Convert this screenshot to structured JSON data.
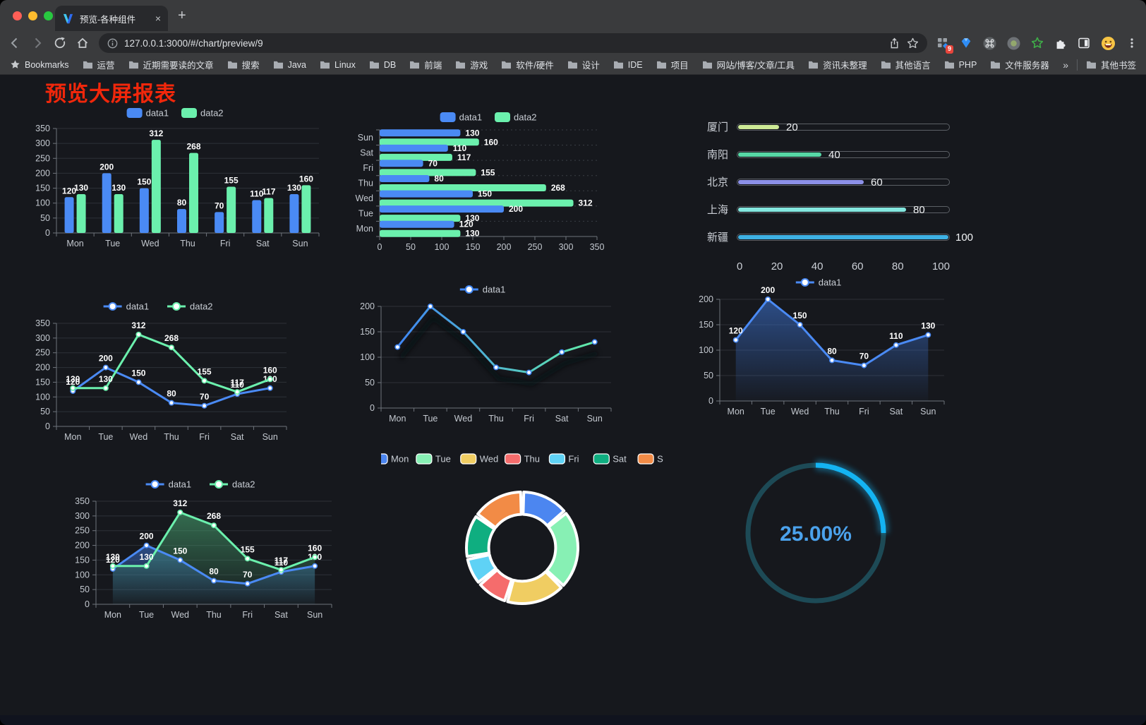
{
  "browser": {
    "tab": {
      "title": "预览-各种组件",
      "close_label": "×",
      "new_tab_label": "+"
    },
    "url": "127.0.0.1:3000/#/chart/preview/9",
    "extension_badge": "9",
    "bookmarks_label": "Bookmarks",
    "bookmarks": [
      "运营",
      "近期需要读的文章",
      "搜索",
      "Java",
      "Linux",
      "DB",
      "前端",
      "游戏",
      "软件/硬件",
      "设计",
      "IDE",
      "项目",
      "网站/博客/文章/工具",
      "资讯未整理",
      "其他语言",
      "PHP",
      "文件服务器"
    ],
    "bookmarks_overflow": "»",
    "other_bookmarks": "其他书签",
    "icons": [
      "back-icon",
      "forward-icon",
      "reload-icon",
      "home-icon",
      "info-icon",
      "share-icon",
      "star-icon",
      "extension-grid-icon",
      "gem-icon",
      "command-icon",
      "record-icon",
      "green-star-icon",
      "puzzle-icon",
      "side-panel-icon",
      "emoji-avatar-icon",
      "menu-icon"
    ]
  },
  "page": {
    "title": "预览大屏报表",
    "title_color": "#f1270b",
    "background": "#16181d"
  },
  "chart_data": [
    {
      "id": "bar-vertical",
      "type": "bar",
      "categories": [
        "Mon",
        "Tue",
        "Wed",
        "Thu",
        "Fri",
        "Sat",
        "Sun"
      ],
      "series": [
        {
          "name": "data1",
          "color": "#4a8af4",
          "values": [
            120,
            200,
            150,
            80,
            70,
            110,
            130
          ]
        },
        {
          "name": "data2",
          "color": "#6bf0ad",
          "values": [
            130,
            130,
            312,
            268,
            155,
            117,
            160
          ]
        }
      ],
      "ylim": [
        0,
        350
      ],
      "ytick": 50,
      "legend_position": "top",
      "grid": true
    },
    {
      "id": "bar-horizontal",
      "type": "bar-horizontal",
      "categories": [
        "Mon",
        "Tue",
        "Wed",
        "Thu",
        "Fri",
        "Sat",
        "Sun"
      ],
      "display_order_top_to_bottom": [
        "Sun",
        "Sat",
        "Fri",
        "Thu",
        "Wed",
        "Tue",
        "Mon"
      ],
      "series": [
        {
          "name": "data1",
          "color": "#4a8af4",
          "values": [
            120,
            200,
            150,
            80,
            70,
            110,
            130
          ]
        },
        {
          "name": "data2",
          "color": "#6bf0ad",
          "values": [
            130,
            130,
            312,
            268,
            155,
            117,
            160
          ]
        }
      ],
      "xlim": [
        0,
        350
      ],
      "xtick": 50,
      "legend_position": "top",
      "grid": true
    },
    {
      "id": "progress",
      "type": "progress-bars",
      "max": 100,
      "axis_ticks": [
        0,
        20,
        40,
        60,
        80,
        100
      ],
      "rows": [
        {
          "label": "厦门",
          "value": 20,
          "color": "#cdea96"
        },
        {
          "label": "南阳",
          "value": 40,
          "color": "#57d7a6"
        },
        {
          "label": "北京",
          "value": 60,
          "color": "#8c90e8"
        },
        {
          "label": "上海",
          "value": 80,
          "color": "#83e6de"
        },
        {
          "label": "新疆",
          "value": 100,
          "color": "#3eb1e4"
        }
      ]
    },
    {
      "id": "line-dual",
      "type": "line",
      "categories": [
        "Mon",
        "Tue",
        "Wed",
        "Thu",
        "Fri",
        "Sat",
        "Sun"
      ],
      "series": [
        {
          "name": "data1",
          "color": "#4a8af4",
          "values": [
            120,
            200,
            150,
            80,
            70,
            110,
            130
          ]
        },
        {
          "name": "data2",
          "color": "#6bf0ad",
          "values": [
            130,
            130,
            312,
            268,
            155,
            117,
            160
          ]
        }
      ],
      "ylim": [
        0,
        350
      ],
      "ytick": 50,
      "show_point_labels": true,
      "legend_position": "top"
    },
    {
      "id": "line-gradient",
      "type": "line",
      "categories": [
        "Mon",
        "Tue",
        "Wed",
        "Thu",
        "Fri",
        "Sat",
        "Sun"
      ],
      "series": [
        {
          "name": "data1",
          "gradient": [
            "#3f86f4",
            "#62eda8"
          ],
          "marker_color": "#3f86f4",
          "values": [
            120,
            200,
            150,
            80,
            70,
            110,
            130
          ]
        }
      ],
      "ylim": [
        0,
        200
      ],
      "ytick": 50,
      "show_point_labels": false,
      "shadow": true,
      "legend_position": "top"
    },
    {
      "id": "line-area",
      "type": "line",
      "categories": [
        "Mon",
        "Tue",
        "Wed",
        "Thu",
        "Fri",
        "Sat",
        "Sun"
      ],
      "series": [
        {
          "name": "data1",
          "color": "#4a8af4",
          "values": [
            120,
            200,
            150,
            80,
            70,
            110,
            130
          ],
          "area": true,
          "area_rgb": "58,110,200"
        }
      ],
      "ylim": [
        0,
        200
      ],
      "ytick": 50,
      "show_point_labels": true,
      "legend_position": "top"
    },
    {
      "id": "line-area-dual",
      "type": "line",
      "categories": [
        "Mon",
        "Tue",
        "Wed",
        "Thu",
        "Fri",
        "Sat",
        "Sun"
      ],
      "series": [
        {
          "name": "data1",
          "color": "#4a8af4",
          "values": [
            120,
            200,
            150,
            80,
            70,
            110,
            130
          ],
          "area": true,
          "area_rgb": "58,110,200"
        },
        {
          "name": "data2",
          "color": "#6bf0ad",
          "values": [
            130,
            130,
            312,
            268,
            155,
            117,
            160
          ],
          "area": true,
          "area_rgb": "70,160,110"
        }
      ],
      "ylim": [
        0,
        350
      ],
      "ytick": 50,
      "show_point_labels": true,
      "legend_position": "top"
    },
    {
      "id": "donut",
      "type": "pie",
      "inner_radius_ratio": 0.6,
      "categories": [
        "Mon",
        "Tue",
        "Wed",
        "Thu",
        "Fri",
        "Sat",
        "Sun"
      ],
      "values": [
        120,
        200,
        150,
        80,
        70,
        110,
        130
      ],
      "colors": [
        "#4c86f0",
        "#87f0b4",
        "#f0cd62",
        "#f56c6c",
        "#5fd2f5",
        "#0fae80",
        "#f28b46"
      ],
      "border_color": "#ffffff",
      "legend_position": "top"
    },
    {
      "id": "gauge",
      "type": "gauge",
      "value": 25,
      "label": "25.00%",
      "color": "#14b3f2",
      "track_color": "#1d4a56",
      "text_color": "#4ba2ec"
    }
  ]
}
